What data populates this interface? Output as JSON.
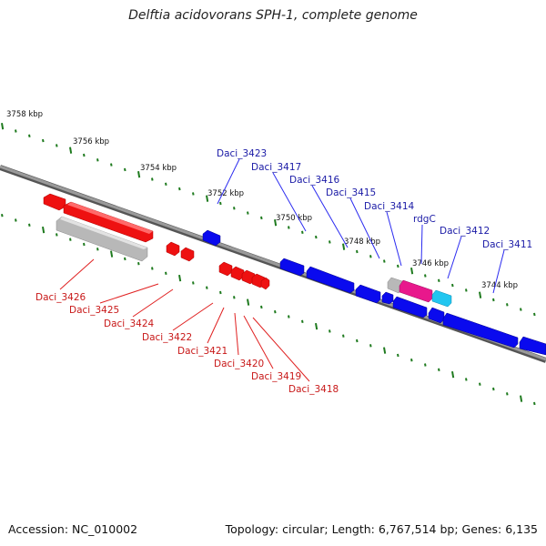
{
  "title": "Delftia acidovorans SPH-1, complete genome",
  "footer": {
    "accession": "Accession: NC_010002",
    "summary": "Topology: circular; Length: 6,767,514 bp; Genes: 6,135"
  },
  "colors": {
    "forward_gene": "#0a0aee",
    "reverse_gene": "#ee1111",
    "pseudo_gene": "#b8b8b8",
    "highlight_magenta": "#e8188c",
    "highlight_cyan": "#22c6f0",
    "backbone": "#808080",
    "tick": "#1e7a1e",
    "forward_label": "#1a1aa6",
    "reverse_label": "#c81818"
  },
  "scale_labels": [
    "3758 kbp",
    "3756 kbp",
    "3754 kbp",
    "3752 kbp",
    "3750 kbp",
    "3748 kbp",
    "3746 kbp",
    "3744 kbp"
  ],
  "forward_labels": [
    "Daci_3423",
    "Daci_3417",
    "Daci_3416",
    "Daci_3415",
    "Daci_3414",
    "rdgC",
    "Daci_3412",
    "Daci_3411"
  ],
  "reverse_labels": [
    "Daci_3426",
    "Daci_3425",
    "Daci_3424",
    "Daci_3422",
    "Daci_3421",
    "Daci_3420",
    "Daci_3419",
    "Daci_3418"
  ]
}
